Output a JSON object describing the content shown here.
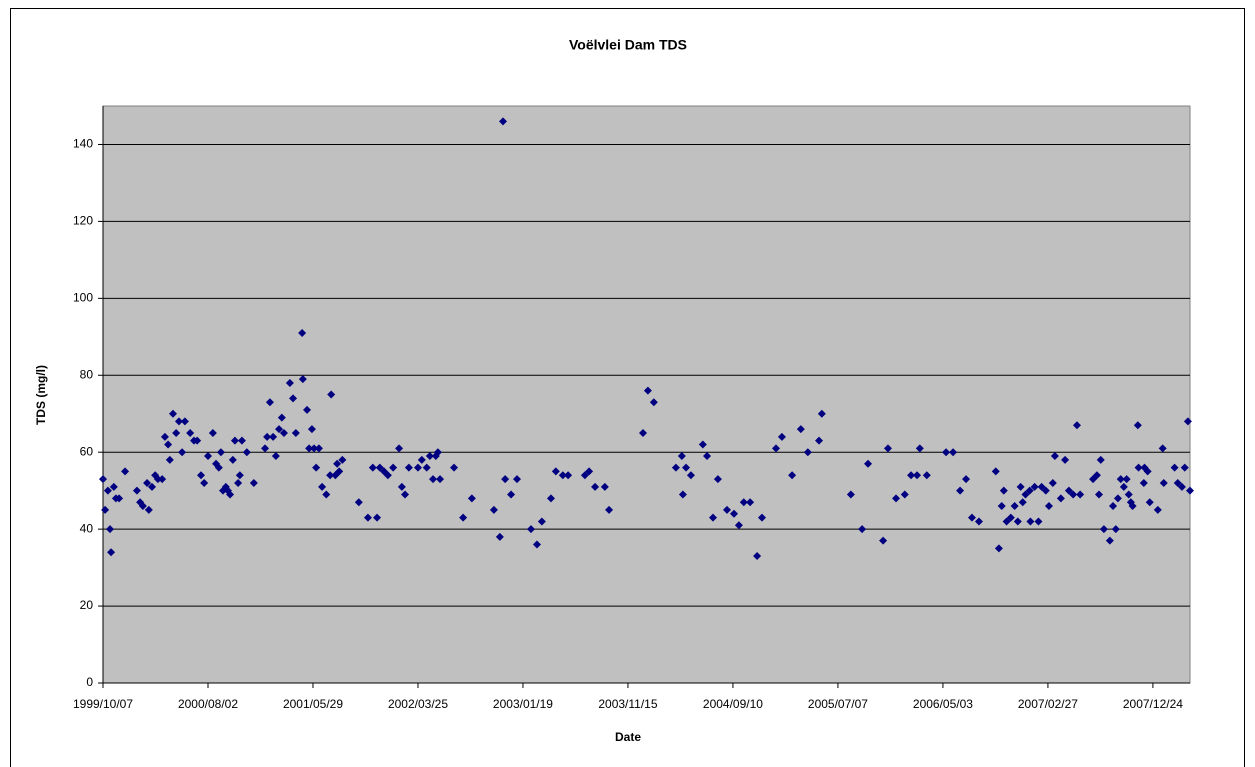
{
  "chart_data": {
    "type": "scatter",
    "title": "Voëlvlei Dam TDS",
    "x_label": "Date",
    "y_label": "TDS (mg/l)",
    "color": "#000080",
    "grid": true,
    "xlim": [
      "1999/10/07",
      "2008/04/08"
    ],
    "xticks": [
      "1999/10/07",
      "2000/08/02",
      "2001/05/29",
      "2002/03/25",
      "2003/01/19",
      "2003/11/15",
      "2004/09/10",
      "2005/07/07",
      "2006/05/03",
      "2007/02/27",
      "2007/12/24"
    ],
    "ylim": [
      0,
      150
    ],
    "yticks": [
      0,
      20,
      40,
      60,
      80,
      100,
      120,
      140
    ],
    "x": [
      "1999/10/07",
      "1999/10/13",
      "1999/10/21",
      "1999/10/27",
      "1999/10/30",
      "1999/11/07",
      "1999/11/13",
      "1999/11/22",
      "1999/12/09",
      "2000/01/12",
      "2000/01/21",
      "2000/01/29",
      "2000/02/10",
      "2000/02/15",
      "2000/02/24",
      "2000/03/04",
      "2000/03/12",
      "2000/03/24",
      "2000/04/01",
      "2000/04/10",
      "2000/04/15",
      "2000/04/24",
      "2000/05/03",
      "2000/05/11",
      "2000/05/20",
      "2000/05/28",
      "2000/06/12",
      "2000/06/23",
      "2000/07/02",
      "2000/07/13",
      "2000/07/22",
      "2000/08/02",
      "2000/08/16",
      "2000/08/25",
      "2000/09/02",
      "2000/09/08",
      "2000/09/14",
      "2000/09/22",
      "2000/09/28",
      "2000/10/04",
      "2000/10/12",
      "2000/10/18",
      "2000/10/27",
      "2000/11/01",
      "2000/11/07",
      "2000/11/21",
      "2000/12/11",
      "2001/01/12",
      "2001/01/18",
      "2001/01/26",
      "2001/02/04",
      "2001/02/12",
      "2001/02/21",
      "2001/03/01",
      "2001/03/07",
      "2001/03/24",
      "2001/04/02",
      "2001/04/10",
      "2001/04/28",
      "2001/04/30",
      "2001/05/12",
      "2001/05/18",
      "2001/05/26",
      "2001/06/01",
      "2001/06/07",
      "2001/06/15",
      "2001/06/24",
      "2001/07/06",
      "2001/07/17",
      "2001/07/20",
      "2001/08/01",
      "2001/08/06",
      "2001/08/12",
      "2001/08/21",
      "2001/10/07",
      "2001/11/02",
      "2001/11/16",
      "2001/11/28",
      "2001/12/06",
      "2001/12/18",
      "2001/12/29",
      "2002/01/13",
      "2002/01/30",
      "2002/02/07",
      "2002/02/16",
      "2002/02/27",
      "2002/03/25",
      "2002/04/05",
      "2002/04/19",
      "2002/04/28",
      "2002/05/07",
      "2002/05/15",
      "2002/05/21",
      "2002/05/27",
      "2002/07/06",
      "2002/08/01",
      "2002/08/26",
      "2002/10/28",
      "2002/11/14",
      "2002/11/23",
      "2002/11/29",
      "2002/12/16",
      "2003/01/02",
      "2003/02/11",
      "2003/02/28",
      "2003/03/14",
      "2003/04/09",
      "2003/04/23",
      "2003/05/13",
      "2003/05/28",
      "2003/07/15",
      "2003/07/27",
      "2003/08/13",
      "2003/09/10",
      "2003/09/22",
      "2003/12/28",
      "2004/01/11",
      "2004/01/28",
      "2004/03/31",
      "2004/04/17",
      "2004/04/20",
      "2004/04/29",
      "2004/05/13",
      "2004/06/16",
      "2004/06/28",
      "2004/07/15",
      "2004/07/29",
      "2004/08/24",
      "2004/09/13",
      "2004/09/27",
      "2004/10/11",
      "2004/10/29",
      "2004/11/18",
      "2004/12/02",
      "2005/01/11",
      "2005/01/28",
      "2005/02/26",
      "2005/03/23",
      "2005/04/12",
      "2005/05/14",
      "2005/05/22",
      "2005/08/13",
      "2005/09/14",
      "2005/10/01",
      "2005/11/13",
      "2005/11/27",
      "2005/12/20",
      "2006/01/14",
      "2006/02/01",
      "2006/02/18",
      "2006/02/26",
      "2006/03/18",
      "2006/05/12",
      "2006/06/01",
      "2006/06/21",
      "2006/07/08",
      "2006/07/25",
      "2006/08/14",
      "2006/10/01",
      "2006/10/10",
      "2006/10/18",
      "2006/10/24",
      "2006/11/01",
      "2006/11/13",
      "2006/11/24",
      "2006/12/03",
      "2006/12/11",
      "2006/12/17",
      "2006/12/25",
      "2007/01/06",
      "2007/01/08",
      "2007/01/20",
      "2007/01/31",
      "2007/02/09",
      "2007/02/21",
      "2007/03/02",
      "2007/03/13",
      "2007/03/19",
      "2007/04/05",
      "2007/04/17",
      "2007/04/28",
      "2007/05/10",
      "2007/05/21",
      "2007/05/30",
      "2007/07/06",
      "2007/07/17",
      "2007/07/23",
      "2007/07/28",
      "2007/08/06",
      "2007/08/23",
      "2007/09/01",
      "2007/09/09",
      "2007/09/15",
      "2007/09/23",
      "2007/10/02",
      "2007/10/10",
      "2007/10/16",
      "2007/10/22",
      "2007/10/27",
      "2007/11/11",
      "2007/11/13",
      "2007/11/28",
      "2007/11/30",
      "2007/12/09",
      "2007/12/15",
      "2008/01/07",
      "2008/01/21",
      "2008/01/24",
      "2008/02/24",
      "2008/03/04",
      "2008/03/16",
      "2008/03/24",
      "2008/04/02",
      "2008/04/08"
    ],
    "values": [
      53,
      45,
      50,
      40,
      34,
      51,
      48,
      48,
      55,
      50,
      47,
      46,
      52,
      45,
      51,
      54,
      53,
      53,
      64,
      62,
      58,
      70,
      65,
      68,
      60,
      68,
      65,
      63,
      63,
      54,
      52,
      59,
      65,
      57,
      56,
      60,
      50,
      51,
      50,
      49,
      58,
      63,
      52,
      54,
      63,
      60,
      52,
      61,
      64,
      73,
      64,
      59,
      66,
      69,
      65,
      78,
      74,
      65,
      91,
      79,
      71,
      61,
      66,
      61,
      56,
      61,
      51,
      49,
      54,
      75,
      54,
      57,
      55,
      58,
      47,
      43,
      56,
      43,
      56,
      55,
      54,
      56,
      61,
      51,
      49,
      56,
      56,
      58,
      56,
      59,
      53,
      59,
      60,
      53,
      56,
      43,
      48,
      45,
      38,
      146,
      53,
      49,
      53,
      40,
      36,
      42,
      48,
      55,
      54,
      54,
      54,
      55,
      51,
      51,
      45,
      65,
      76,
      73,
      56,
      59,
      49,
      56,
      54,
      62,
      59,
      43,
      53,
      45,
      44,
      41,
      47,
      47,
      33,
      43,
      61,
      64,
      54,
      66,
      60,
      63,
      70,
      49,
      40,
      57,
      37,
      61,
      48,
      49,
      54,
      54,
      61,
      54,
      60,
      60,
      50,
      53,
      43,
      42,
      55,
      35,
      46,
      50,
      42,
      43,
      46,
      42,
      51,
      47,
      49,
      50,
      42,
      51,
      42,
      51,
      50,
      46,
      52,
      59,
      48,
      58,
      50,
      49,
      67,
      49,
      53,
      54,
      49,
      58,
      40,
      37,
      46,
      40,
      48,
      53,
      51,
      53,
      49,
      47,
      46,
      67,
      56,
      52,
      56,
      55,
      47,
      45,
      61,
      52,
      56,
      52,
      51,
      56,
      68,
      50
    ]
  }
}
